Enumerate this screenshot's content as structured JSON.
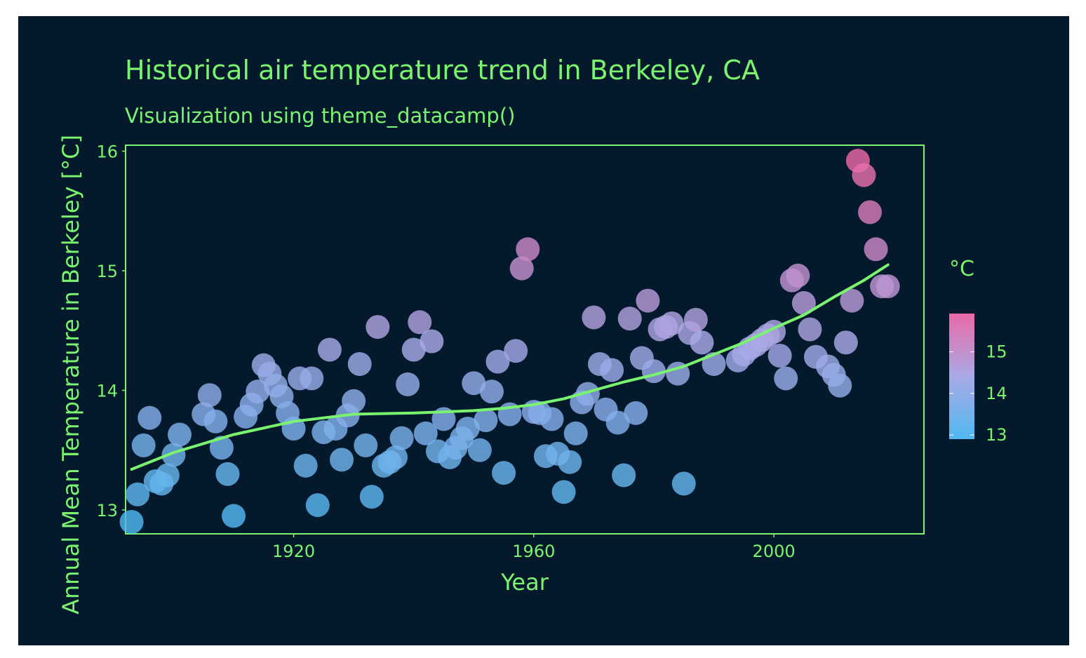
{
  "chart_data": {
    "type": "scatter",
    "title": "Historical air temperature trend in Berkeley, CA",
    "subtitle": "Visualization using theme_datacamp()",
    "xlabel": "Year",
    "ylabel": "Annual Mean Temperature in Berkeley [°C]",
    "xlim": [
      1892,
      2025
    ],
    "ylim": [
      12.8,
      16.05
    ],
    "x_ticks": [
      1920,
      1960,
      2000
    ],
    "y_ticks": [
      13,
      14,
      15,
      16
    ],
    "legend": {
      "title": "°C",
      "position": "right",
      "ticks": [
        13,
        14,
        15
      ],
      "range": [
        12.9,
        15.92
      ]
    },
    "grid": false,
    "colors": {
      "background": "#05192d",
      "accent": "#7af46e",
      "low": "#51b8f0",
      "mid": "#a9a9e6",
      "high": "#ea6aa7"
    },
    "points": [
      {
        "x": 1893,
        "y": 12.9
      },
      {
        "x": 1894,
        "y": 13.13
      },
      {
        "x": 1895,
        "y": 13.54
      },
      {
        "x": 1896,
        "y": 13.77
      },
      {
        "x": 1897,
        "y": 13.24
      },
      {
        "x": 1898,
        "y": 13.22
      },
      {
        "x": 1899,
        "y": 13.29
      },
      {
        "x": 1900,
        "y": 13.46
      },
      {
        "x": 1901,
        "y": 13.63
      },
      {
        "x": 1905,
        "y": 13.8
      },
      {
        "x": 1906,
        "y": 13.96
      },
      {
        "x": 1907,
        "y": 13.74
      },
      {
        "x": 1908,
        "y": 13.52
      },
      {
        "x": 1909,
        "y": 13.3
      },
      {
        "x": 1910,
        "y": 12.95
      },
      {
        "x": 1912,
        "y": 13.78
      },
      {
        "x": 1913,
        "y": 13.88
      },
      {
        "x": 1914,
        "y": 13.99
      },
      {
        "x": 1915,
        "y": 14.21
      },
      {
        "x": 1916,
        "y": 14.14
      },
      {
        "x": 1917,
        "y": 14.04
      },
      {
        "x": 1918,
        "y": 13.95
      },
      {
        "x": 1919,
        "y": 13.81
      },
      {
        "x": 1920,
        "y": 13.68
      },
      {
        "x": 1921,
        "y": 14.1
      },
      {
        "x": 1922,
        "y": 13.37
      },
      {
        "x": 1923,
        "y": 14.1
      },
      {
        "x": 1924,
        "y": 13.04
      },
      {
        "x": 1925,
        "y": 13.65
      },
      {
        "x": 1926,
        "y": 14.34
      },
      {
        "x": 1927,
        "y": 13.68
      },
      {
        "x": 1928,
        "y": 13.42
      },
      {
        "x": 1929,
        "y": 13.79
      },
      {
        "x": 1930,
        "y": 13.91
      },
      {
        "x": 1931,
        "y": 14.22
      },
      {
        "x": 1932,
        "y": 13.54
      },
      {
        "x": 1933,
        "y": 13.11
      },
      {
        "x": 1934,
        "y": 14.53
      },
      {
        "x": 1935,
        "y": 13.37
      },
      {
        "x": 1936,
        "y": 13.4
      },
      {
        "x": 1937,
        "y": 13.44
      },
      {
        "x": 1938,
        "y": 13.6
      },
      {
        "x": 1939,
        "y": 14.05
      },
      {
        "x": 1940,
        "y": 14.34
      },
      {
        "x": 1941,
        "y": 14.57
      },
      {
        "x": 1942,
        "y": 13.64
      },
      {
        "x": 1943,
        "y": 14.41
      },
      {
        "x": 1944,
        "y": 13.49
      },
      {
        "x": 1945,
        "y": 13.76
      },
      {
        "x": 1946,
        "y": 13.44
      },
      {
        "x": 1947,
        "y": 13.52
      },
      {
        "x": 1948,
        "y": 13.6
      },
      {
        "x": 1949,
        "y": 13.68
      },
      {
        "x": 1950,
        "y": 14.06
      },
      {
        "x": 1951,
        "y": 13.5
      },
      {
        "x": 1952,
        "y": 13.75
      },
      {
        "x": 1953,
        "y": 13.99
      },
      {
        "x": 1954,
        "y": 14.24
      },
      {
        "x": 1955,
        "y": 13.31
      },
      {
        "x": 1956,
        "y": 13.8
      },
      {
        "x": 1957,
        "y": 14.33
      },
      {
        "x": 1958,
        "y": 15.02
      },
      {
        "x": 1959,
        "y": 15.18
      },
      {
        "x": 1960,
        "y": 13.82
      },
      {
        "x": 1961,
        "y": 13.81
      },
      {
        "x": 1962,
        "y": 13.45
      },
      {
        "x": 1963,
        "y": 13.76
      },
      {
        "x": 1964,
        "y": 13.47
      },
      {
        "x": 1965,
        "y": 13.15
      },
      {
        "x": 1966,
        "y": 13.4
      },
      {
        "x": 1967,
        "y": 13.64
      },
      {
        "x": 1968,
        "y": 13.9
      },
      {
        "x": 1969,
        "y": 13.97
      },
      {
        "x": 1970,
        "y": 14.61
      },
      {
        "x": 1971,
        "y": 14.22
      },
      {
        "x": 1972,
        "y": 13.84
      },
      {
        "x": 1973,
        "y": 14.17
      },
      {
        "x": 1974,
        "y": 13.73
      },
      {
        "x": 1975,
        "y": 13.29
      },
      {
        "x": 1976,
        "y": 14.6
      },
      {
        "x": 1977,
        "y": 13.81
      },
      {
        "x": 1978,
        "y": 14.27
      },
      {
        "x": 1979,
        "y": 14.75
      },
      {
        "x": 1980,
        "y": 14.16
      },
      {
        "x": 1981,
        "y": 14.51
      },
      {
        "x": 1982,
        "y": 14.53
      },
      {
        "x": 1983,
        "y": 14.56
      },
      {
        "x": 1984,
        "y": 14.14
      },
      {
        "x": 1985,
        "y": 13.22
      },
      {
        "x": 1986,
        "y": 14.48
      },
      {
        "x": 1987,
        "y": 14.59
      },
      {
        "x": 1988,
        "y": 14.4
      },
      {
        "x": 1990,
        "y": 14.22
      },
      {
        "x": 1994,
        "y": 14.25
      },
      {
        "x": 1995,
        "y": 14.3
      },
      {
        "x": 1996,
        "y": 14.35
      },
      {
        "x": 1997,
        "y": 14.38
      },
      {
        "x": 1998,
        "y": 14.42
      },
      {
        "x": 1999,
        "y": 14.46
      },
      {
        "x": 2000,
        "y": 14.49
      },
      {
        "x": 2001,
        "y": 14.29
      },
      {
        "x": 2002,
        "y": 14.1
      },
      {
        "x": 2003,
        "y": 14.92
      },
      {
        "x": 2004,
        "y": 14.96
      },
      {
        "x": 2005,
        "y": 14.73
      },
      {
        "x": 2006,
        "y": 14.51
      },
      {
        "x": 2007,
        "y": 14.28
      },
      {
        "x": 2009,
        "y": 14.2
      },
      {
        "x": 2010,
        "y": 14.13
      },
      {
        "x": 2011,
        "y": 14.04
      },
      {
        "x": 2012,
        "y": 14.4
      },
      {
        "x": 2013,
        "y": 14.75
      },
      {
        "x": 2014,
        "y": 15.92
      },
      {
        "x": 2015,
        "y": 15.8
      },
      {
        "x": 2016,
        "y": 15.49
      },
      {
        "x": 2017,
        "y": 15.18
      },
      {
        "x": 2018,
        "y": 14.87
      },
      {
        "x": 2019,
        "y": 14.87
      }
    ],
    "trend": {
      "x": [
        1893,
        1900,
        1910,
        1920,
        1930,
        1940,
        1950,
        1955,
        1960,
        1965,
        1970,
        1975,
        1980,
        1985,
        1990,
        1995,
        2000,
        2005,
        2010,
        2015,
        2019
      ],
      "y": [
        13.34,
        13.48,
        13.63,
        13.74,
        13.8,
        13.81,
        13.83,
        13.85,
        13.88,
        13.93,
        14.0,
        14.07,
        14.13,
        14.2,
        14.3,
        14.4,
        14.52,
        14.63,
        14.78,
        14.92,
        15.05
      ]
    }
  }
}
